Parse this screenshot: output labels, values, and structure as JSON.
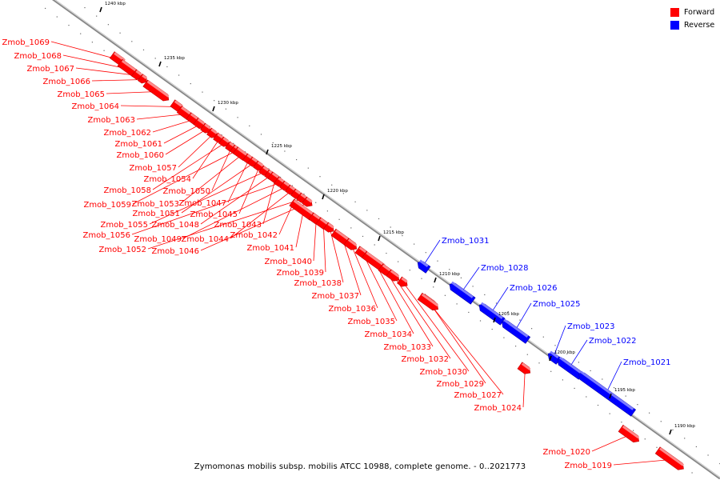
{
  "legend": {
    "forward_label": "Forward",
    "reverse_label": "Reverse",
    "forward_color": "#ff0000",
    "reverse_color": "#0000ff"
  },
  "caption": "Zymomonas mobilis subsp. mobilis ATCC 10988, complete genome. - 0..2021773",
  "scale": {
    "unit": "kbp",
    "ticks": [
      "1240 kbp",
      "1235 kbp",
      "1230 kbp",
      "1225 kbp",
      "1220 kbp",
      "1215 kbp",
      "1210 kbp",
      "1205 kbp",
      "1200 kbp",
      "1195 kbp",
      "1190 kbp"
    ]
  },
  "genes": [
    {
      "name": "Zmob_1069",
      "strand": "forward"
    },
    {
      "name": "Zmob_1068",
      "strand": "forward"
    },
    {
      "name": "Zmob_1067",
      "strand": "forward"
    },
    {
      "name": "Zmob_1066",
      "strand": "forward"
    },
    {
      "name": "Zmob_1065",
      "strand": "forward"
    },
    {
      "name": "Zmob_1064",
      "strand": "forward"
    },
    {
      "name": "Zmob_1063",
      "strand": "forward"
    },
    {
      "name": "Zmob_1062",
      "strand": "forward"
    },
    {
      "name": "Zmob_1061",
      "strand": "forward"
    },
    {
      "name": "Zmob_1060",
      "strand": "forward"
    },
    {
      "name": "Zmob_1057",
      "strand": "forward"
    },
    {
      "name": "Zmob_1054",
      "strand": "forward"
    },
    {
      "name": "Zmob_1058",
      "strand": "forward"
    },
    {
      "name": "Zmob_1050",
      "strand": "forward"
    },
    {
      "name": "Zmob_1059",
      "strand": "forward"
    },
    {
      "name": "Zmob_1053",
      "strand": "forward"
    },
    {
      "name": "Zmob_1047",
      "strand": "forward"
    },
    {
      "name": "Zmob_1051",
      "strand": "forward"
    },
    {
      "name": "Zmob_1045",
      "strand": "forward"
    },
    {
      "name": "Zmob_1055",
      "strand": "forward"
    },
    {
      "name": "Zmob_1048",
      "strand": "forward"
    },
    {
      "name": "Zmob_1043",
      "strand": "forward"
    },
    {
      "name": "Zmob_1056",
      "strand": "forward"
    },
    {
      "name": "Zmob_1049",
      "strand": "forward"
    },
    {
      "name": "Zmob_1044",
      "strand": "forward"
    },
    {
      "name": "Zmob_1042",
      "strand": "forward"
    },
    {
      "name": "Zmob_1052",
      "strand": "forward"
    },
    {
      "name": "Zmob_1046",
      "strand": "forward"
    },
    {
      "name": "Zmob_1041",
      "strand": "forward"
    },
    {
      "name": "Zmob_1040",
      "strand": "forward"
    },
    {
      "name": "Zmob_1039",
      "strand": "forward"
    },
    {
      "name": "Zmob_1038",
      "strand": "forward"
    },
    {
      "name": "Zmob_1037",
      "strand": "forward"
    },
    {
      "name": "Zmob_1036",
      "strand": "forward"
    },
    {
      "name": "Zmob_1035",
      "strand": "forward"
    },
    {
      "name": "Zmob_1034",
      "strand": "forward"
    },
    {
      "name": "Zmob_1033",
      "strand": "forward"
    },
    {
      "name": "Zmob_1032",
      "strand": "forward"
    },
    {
      "name": "Zmob_1030",
      "strand": "forward"
    },
    {
      "name": "Zmob_1029",
      "strand": "forward"
    },
    {
      "name": "Zmob_1027",
      "strand": "forward"
    },
    {
      "name": "Zmob_1024",
      "strand": "forward"
    },
    {
      "name": "Zmob_1031",
      "strand": "reverse"
    },
    {
      "name": "Zmob_1028",
      "strand": "reverse"
    },
    {
      "name": "Zmob_1026",
      "strand": "reverse"
    },
    {
      "name": "Zmob_1025",
      "strand": "reverse"
    },
    {
      "name": "Zmob_1023",
      "strand": "reverse"
    },
    {
      "name": "Zmob_1022",
      "strand": "reverse"
    },
    {
      "name": "Zmob_1021",
      "strand": "reverse"
    },
    {
      "name": "Zmob_1020",
      "strand": "forward"
    },
    {
      "name": "Zmob_1019",
      "strand": "forward"
    }
  ]
}
